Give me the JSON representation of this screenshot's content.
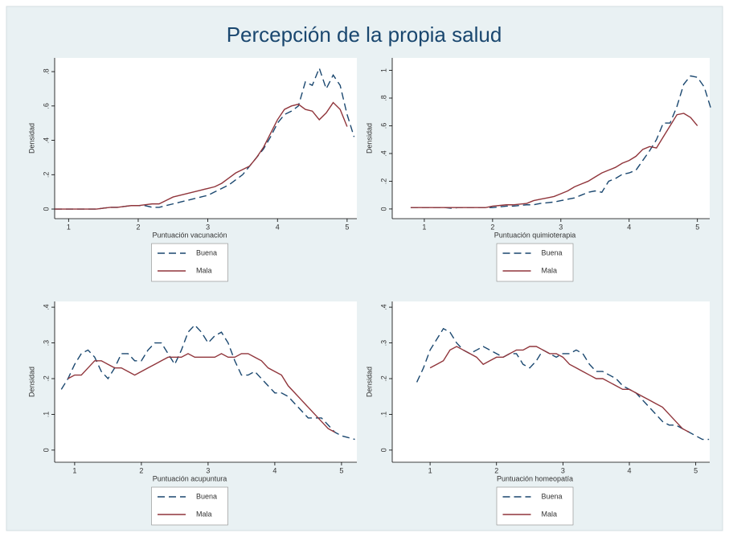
{
  "title": "Percepción de la propia salud",
  "chart_data": [
    {
      "type": "line",
      "xlabel": "Puntuación vacunación",
      "ylabel": "Densidad",
      "legend": "bottom",
      "grid": false,
      "xlim": [
        0.8,
        5.14
      ],
      "ylim": [
        -0.056,
        0.88
      ],
      "xticks": [
        1,
        2,
        3,
        4,
        5
      ],
      "yticks": [
        0,
        {
          "value": 0.2,
          "label": ".2"
        },
        {
          "value": 0.4,
          "label": ".4"
        },
        {
          "value": 0.6,
          "label": ".6"
        },
        {
          "value": 0.8,
          "label": ".8"
        }
      ],
      "x": [
        0.8,
        0.9,
        1.0,
        1.1,
        1.2,
        1.3,
        1.4,
        1.5,
        1.6,
        1.7,
        1.8,
        1.9,
        2.0,
        2.1,
        2.2,
        2.3,
        2.4,
        2.5,
        2.6,
        2.7,
        2.8,
        2.9,
        3.0,
        3.1,
        3.2,
        3.3,
        3.4,
        3.5,
        3.6,
        3.7,
        3.8,
        3.9,
        4.0,
        4.1,
        4.2,
        4.3,
        4.4,
        4.5,
        4.6,
        4.7,
        4.8,
        4.9,
        5.0,
        5.1
      ],
      "series": [
        {
          "name": "Buena",
          "color": "#1a476f",
          "line_style": "dashed",
          "values": [
            0,
            0,
            0,
            0,
            0,
            0,
            0,
            0.005,
            0.01,
            0.01,
            0.015,
            0.02,
            0.02,
            0.02,
            0.01,
            0.01,
            0.02,
            0.03,
            0.04,
            0.05,
            0.06,
            0.07,
            0.08,
            0.1,
            0.12,
            0.14,
            0.17,
            0.2,
            0.25,
            0.3,
            0.35,
            0.42,
            0.5,
            0.55,
            0.57,
            0.6,
            0.74,
            0.72,
            0.82,
            0.7,
            0.78,
            0.72,
            0.55,
            0.42
          ]
        },
        {
          "name": "Mala",
          "color": "#90353b",
          "line_style": "solid",
          "values": [
            0,
            0,
            0,
            0,
            0,
            0,
            0,
            0.005,
            0.01,
            0.01,
            0.015,
            0.02,
            0.02,
            0.025,
            0.03,
            0.03,
            0.05,
            0.07,
            0.08,
            0.09,
            0.1,
            0.11,
            0.12,
            0.13,
            0.15,
            0.18,
            0.21,
            0.23,
            0.25,
            0.3,
            0.36,
            0.44,
            0.52,
            0.58,
            0.6,
            0.61,
            0.58,
            0.57,
            0.52,
            0.56,
            0.62,
            0.58,
            0.48,
            null
          ]
        }
      ]
    },
    {
      "type": "line",
      "xlabel": "Puntuación quimioterapia",
      "ylabel": "Densidad",
      "legend": "bottom",
      "grid": false,
      "xlim": [
        0.53,
        5.18
      ],
      "ylim": [
        -0.07,
        1.09
      ],
      "xticks": [
        1,
        2,
        3,
        4,
        5
      ],
      "yticks": [
        0,
        {
          "value": 0.2,
          "label": ".2"
        },
        {
          "value": 0.4,
          "label": ".4"
        },
        {
          "value": 0.6,
          "label": ".6"
        },
        {
          "value": 0.8,
          "label": ".8"
        },
        1
      ],
      "x": [
        0.8,
        0.9,
        1.0,
        1.1,
        1.2,
        1.3,
        1.4,
        1.5,
        1.6,
        1.7,
        1.8,
        1.9,
        2.0,
        2.1,
        2.2,
        2.3,
        2.4,
        2.5,
        2.6,
        2.7,
        2.8,
        2.9,
        3.0,
        3.1,
        3.2,
        3.3,
        3.4,
        3.5,
        3.6,
        3.7,
        3.8,
        3.9,
        4.0,
        4.1,
        4.2,
        4.3,
        4.4,
        4.5,
        4.6,
        4.7,
        4.8,
        4.9,
        5.0,
        5.1,
        5.2
      ],
      "series": [
        {
          "name": "Buena",
          "color": "#1a476f",
          "line_style": "dashed",
          "values": [
            0.01,
            0.01,
            0.01,
            0.01,
            0.01,
            0.01,
            0.005,
            0.01,
            0.01,
            0.01,
            0.01,
            0.01,
            0.01,
            0.015,
            0.02,
            0.02,
            0.025,
            0.03,
            0.03,
            0.04,
            0.045,
            0.05,
            0.06,
            0.07,
            0.08,
            0.1,
            0.12,
            0.13,
            0.12,
            0.2,
            0.22,
            0.25,
            0.26,
            0.28,
            0.35,
            0.42,
            0.5,
            0.62,
            0.62,
            0.74,
            0.9,
            0.96,
            0.95,
            0.88,
            0.72
          ]
        },
        {
          "name": "Mala",
          "color": "#90353b",
          "line_style": "solid",
          "values": [
            0.01,
            0.01,
            0.01,
            0.01,
            0.01,
            0.01,
            0.01,
            0.01,
            0.01,
            0.01,
            0.01,
            0.01,
            0.02,
            0.025,
            0.03,
            0.03,
            0.035,
            0.04,
            0.06,
            0.07,
            0.08,
            0.09,
            0.11,
            0.13,
            0.16,
            0.18,
            0.2,
            0.23,
            0.26,
            0.28,
            0.3,
            0.33,
            0.35,
            0.38,
            0.43,
            0.45,
            0.44,
            0.52,
            0.6,
            0.68,
            0.69,
            0.66,
            0.6,
            null,
            null
          ]
        }
      ]
    },
    {
      "type": "line",
      "xlabel": "Puntuación acupuntura",
      "ylabel": "Densidad",
      "legend": "bottom",
      "grid": false,
      "xlim": [
        0.7,
        5.23
      ],
      "ylim": [
        -0.034,
        0.416
      ],
      "xticks": [
        1,
        2,
        3,
        4,
        5
      ],
      "yticks": [
        0,
        {
          "value": 0.1,
          "label": ".1"
        },
        {
          "value": 0.2,
          "label": ".2"
        },
        {
          "value": 0.3,
          "label": ".3"
        },
        {
          "value": 0.4,
          "label": ".4"
        }
      ],
      "x": [
        0.8,
        0.9,
        1.0,
        1.1,
        1.2,
        1.3,
        1.4,
        1.5,
        1.6,
        1.7,
        1.8,
        1.9,
        2.0,
        2.1,
        2.2,
        2.3,
        2.4,
        2.5,
        2.6,
        2.7,
        2.8,
        2.9,
        3.0,
        3.1,
        3.2,
        3.3,
        3.4,
        3.5,
        3.6,
        3.7,
        3.8,
        3.9,
        4.0,
        4.1,
        4.2,
        4.3,
        4.4,
        4.5,
        4.6,
        4.7,
        4.8,
        4.9,
        5.0,
        5.1,
        5.2
      ],
      "series": [
        {
          "name": "Buena",
          "color": "#1a476f",
          "line_style": "dashed",
          "values": [
            0.17,
            0.2,
            0.24,
            0.27,
            0.28,
            0.26,
            0.22,
            0.2,
            0.23,
            0.27,
            0.27,
            0.25,
            0.25,
            0.28,
            0.3,
            0.3,
            0.27,
            0.24,
            0.28,
            0.33,
            0.35,
            0.33,
            0.3,
            0.32,
            0.33,
            0.3,
            0.25,
            0.21,
            0.21,
            0.22,
            0.2,
            0.18,
            0.16,
            0.16,
            0.15,
            0.13,
            0.11,
            0.09,
            0.09,
            0.09,
            0.07,
            0.05,
            0.04,
            0.035,
            0.03
          ]
        },
        {
          "name": "Mala",
          "color": "#90353b",
          "line_style": "solid",
          "values": [
            null,
            0.2,
            0.21,
            0.21,
            0.23,
            0.25,
            0.25,
            0.24,
            0.23,
            0.23,
            0.22,
            0.21,
            0.22,
            0.23,
            0.24,
            0.25,
            0.26,
            0.26,
            0.26,
            0.27,
            0.26,
            0.26,
            0.26,
            0.26,
            0.27,
            0.26,
            0.26,
            0.27,
            0.27,
            0.26,
            0.25,
            0.23,
            0.22,
            0.21,
            0.18,
            0.16,
            0.14,
            0.12,
            0.1,
            0.08,
            0.06,
            0.05,
            null,
            null,
            null
          ]
        }
      ]
    },
    {
      "type": "line",
      "xlabel": "Puntuación homeopatía",
      "ylabel": "Densidad",
      "legend": "bottom",
      "grid": false,
      "xlim": [
        0.43,
        5.21
      ],
      "ylim": [
        -0.034,
        0.416
      ],
      "xticks": [
        1,
        2,
        3,
        4,
        5
      ],
      "yticks": [
        0,
        {
          "value": 0.1,
          "label": ".1"
        },
        {
          "value": 0.2,
          "label": ".2"
        },
        {
          "value": 0.3,
          "label": ".3"
        },
        {
          "value": 0.4,
          "label": ".4"
        }
      ],
      "x": [
        0.8,
        0.9,
        1.0,
        1.1,
        1.2,
        1.3,
        1.4,
        1.5,
        1.6,
        1.7,
        1.8,
        1.9,
        2.0,
        2.1,
        2.2,
        2.3,
        2.4,
        2.5,
        2.6,
        2.7,
        2.8,
        2.9,
        3.0,
        3.1,
        3.2,
        3.3,
        3.4,
        3.5,
        3.6,
        3.7,
        3.8,
        3.9,
        4.0,
        4.1,
        4.2,
        4.3,
        4.4,
        4.5,
        4.6,
        4.7,
        4.8,
        4.9,
        5.0,
        5.1,
        5.2
      ],
      "series": [
        {
          "name": "Buena",
          "color": "#1a476f",
          "line_style": "dashed",
          "values": [
            0.19,
            0.23,
            0.28,
            0.31,
            0.34,
            0.33,
            0.3,
            0.28,
            0.27,
            0.28,
            0.29,
            0.28,
            0.27,
            0.26,
            0.27,
            0.27,
            0.24,
            0.23,
            0.25,
            0.28,
            0.27,
            0.26,
            0.27,
            0.27,
            0.28,
            0.27,
            0.24,
            0.22,
            0.22,
            0.21,
            0.2,
            0.18,
            0.17,
            0.16,
            0.14,
            0.12,
            0.1,
            0.08,
            0.07,
            0.07,
            0.06,
            0.05,
            0.04,
            0.03,
            0.03
          ]
        },
        {
          "name": "Mala",
          "color": "#90353b",
          "line_style": "solid",
          "values": [
            null,
            null,
            0.23,
            0.24,
            0.25,
            0.28,
            0.29,
            0.28,
            0.27,
            0.26,
            0.24,
            0.25,
            0.26,
            0.26,
            0.27,
            0.28,
            0.28,
            0.29,
            0.29,
            0.28,
            0.27,
            0.27,
            0.26,
            0.24,
            0.23,
            0.22,
            0.21,
            0.2,
            0.2,
            0.19,
            0.18,
            0.17,
            0.17,
            0.16,
            0.15,
            0.14,
            0.13,
            0.12,
            0.1,
            0.08,
            0.06,
            0.05,
            null,
            null,
            null
          ]
        }
      ]
    }
  ]
}
